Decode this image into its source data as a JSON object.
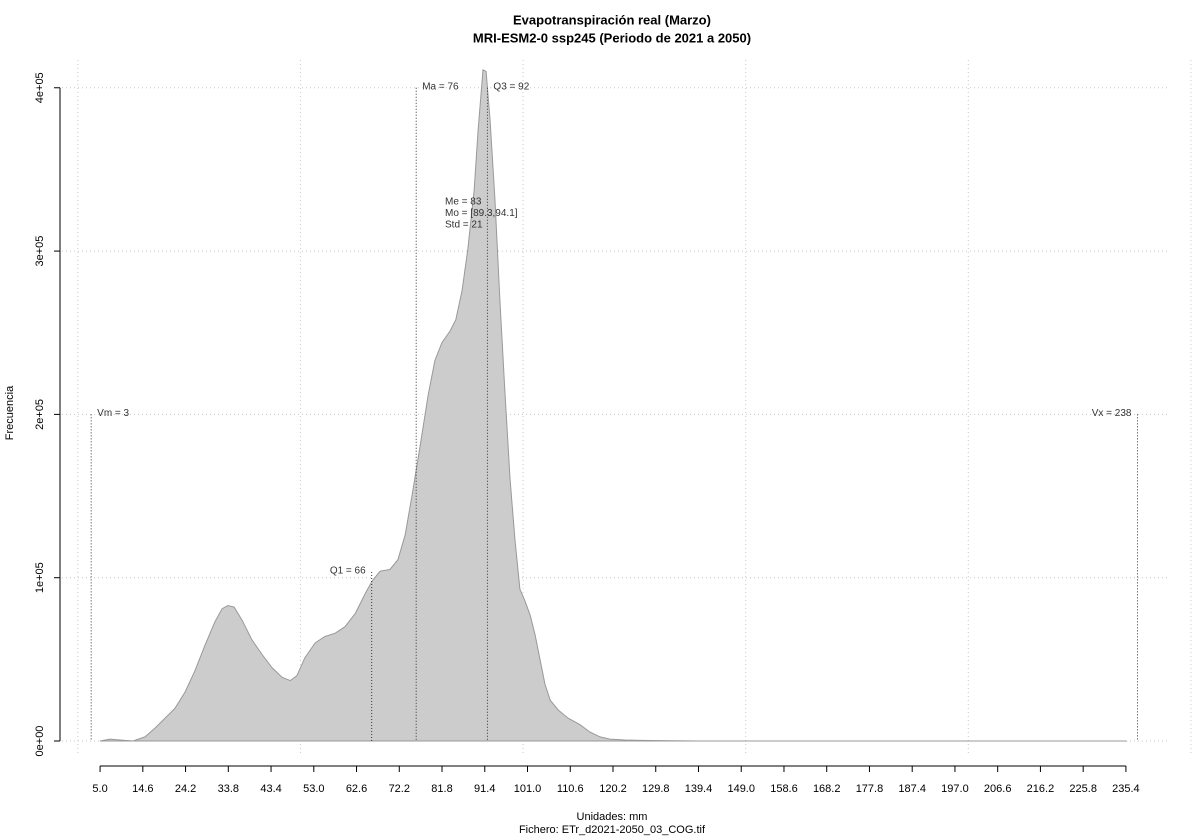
{
  "chart_data": {
    "type": "area",
    "title": "Evapotranspiración real (Marzo)",
    "subtitle": "MRI-ESM2-0 ssp245 (Periodo de 2021 a 2050)",
    "x_label": "Unidades: mm",
    "x_label_2": "Fichero: ETr_d2021-2050_03_COG.tif",
    "y_label": "Frecuencia",
    "color": "#cccccc",
    "x": [
      5.0,
      7.2,
      9.5,
      12.4,
      15.1,
      17.4,
      19.6,
      21.8,
      24.1,
      26.3,
      28.6,
      30.8,
      32.4,
      33.7,
      35.1,
      36.9,
      39.1,
      41.4,
      43.6,
      45.9,
      47.7,
      49.2,
      51.0,
      53.3,
      55.5,
      57.8,
      60.0,
      62.3,
      64.5,
      66.1,
      67.9,
      70.1,
      71.9,
      73.5,
      75.1,
      76.9,
      78.7,
      80.2,
      81.8,
      83.6,
      84.9,
      86.3,
      87.6,
      89.0,
      89.9,
      91.0,
      91.7,
      92.6,
      93.7,
      94.8,
      95.9,
      97.1,
      98.2,
      99.3,
      100.4,
      101.6,
      102.7,
      103.8,
      104.9,
      106.1,
      107.9,
      110.1,
      112.8,
      115.0,
      117.3,
      119.5,
      122.9,
      128.5,
      139.7,
      235.4
    ],
    "values": [
      0,
      1200,
      600,
      0,
      2500,
      8000,
      14000,
      20000,
      30000,
      43000,
      59000,
      73000,
      81000,
      83000,
      82000,
      74000,
      62000,
      53000,
      45000,
      39000,
      37000,
      40000,
      51000,
      60000,
      64000,
      66000,
      70000,
      78000,
      90000,
      98000,
      104000,
      105000,
      111000,
      126000,
      151000,
      181000,
      212000,
      233000,
      244000,
      251000,
      258000,
      276000,
      301000,
      337000,
      374000,
      411000,
      410000,
      380000,
      331000,
      270000,
      215000,
      160000,
      123000,
      93000,
      86000,
      77000,
      65000,
      50000,
      35000,
      25000,
      19000,
      14000,
      10000,
      5500,
      2500,
      1200,
      600,
      300,
      0,
      0
    ],
    "xlim": [
      -4,
      245.3
    ],
    "ylim": [
      -15300,
      417000
    ],
    "xticks": [
      {
        "value": 5,
        "label": "5.0"
      },
      14.6,
      24.2,
      33.8,
      43.4,
      {
        "value": 53,
        "label": "53.0"
      },
      62.6,
      72.2,
      81.8,
      91.4,
      {
        "value": 101,
        "label": "101.0"
      },
      110.6,
      120.2,
      129.8,
      139.4,
      {
        "value": 149,
        "label": "149.0"
      },
      158.6,
      168.2,
      177.8,
      187.4,
      {
        "value": 197,
        "label": "197.0"
      },
      206.6,
      216.2,
      225.8,
      235.4
    ],
    "xgrid": [
      0,
      50,
      100,
      150,
      200,
      250
    ],
    "yticks": [
      {
        "value": 0,
        "label": "0e+00"
      },
      {
        "value": 100000,
        "label": "1e+05"
      },
      {
        "value": 200000,
        "label": "2e+05"
      },
      {
        "value": 300000,
        "label": "3e+05"
      },
      {
        "value": 400000,
        "label": "4e+05"
      }
    ],
    "grid": true,
    "annotations": [
      {
        "label": "Vm = 3",
        "x": 3,
        "y": 200000,
        "side": "right"
      },
      {
        "label": "Q1 = 66",
        "x": 66,
        "y": 103500,
        "side": "left"
      },
      {
        "label": "Ma = 76",
        "x": 76,
        "y": 400000,
        "side": "right"
      },
      {
        "label": "Q3 = 92",
        "x": 92,
        "y": 400000,
        "side": "right"
      },
      {
        "label": "Vx = 238",
        "x": 238,
        "y": 200000,
        "side": "left"
      }
    ],
    "stats": [
      "Me = 83",
      "Mo = [89.3,94.1]",
      "Std = 21"
    ]
  }
}
